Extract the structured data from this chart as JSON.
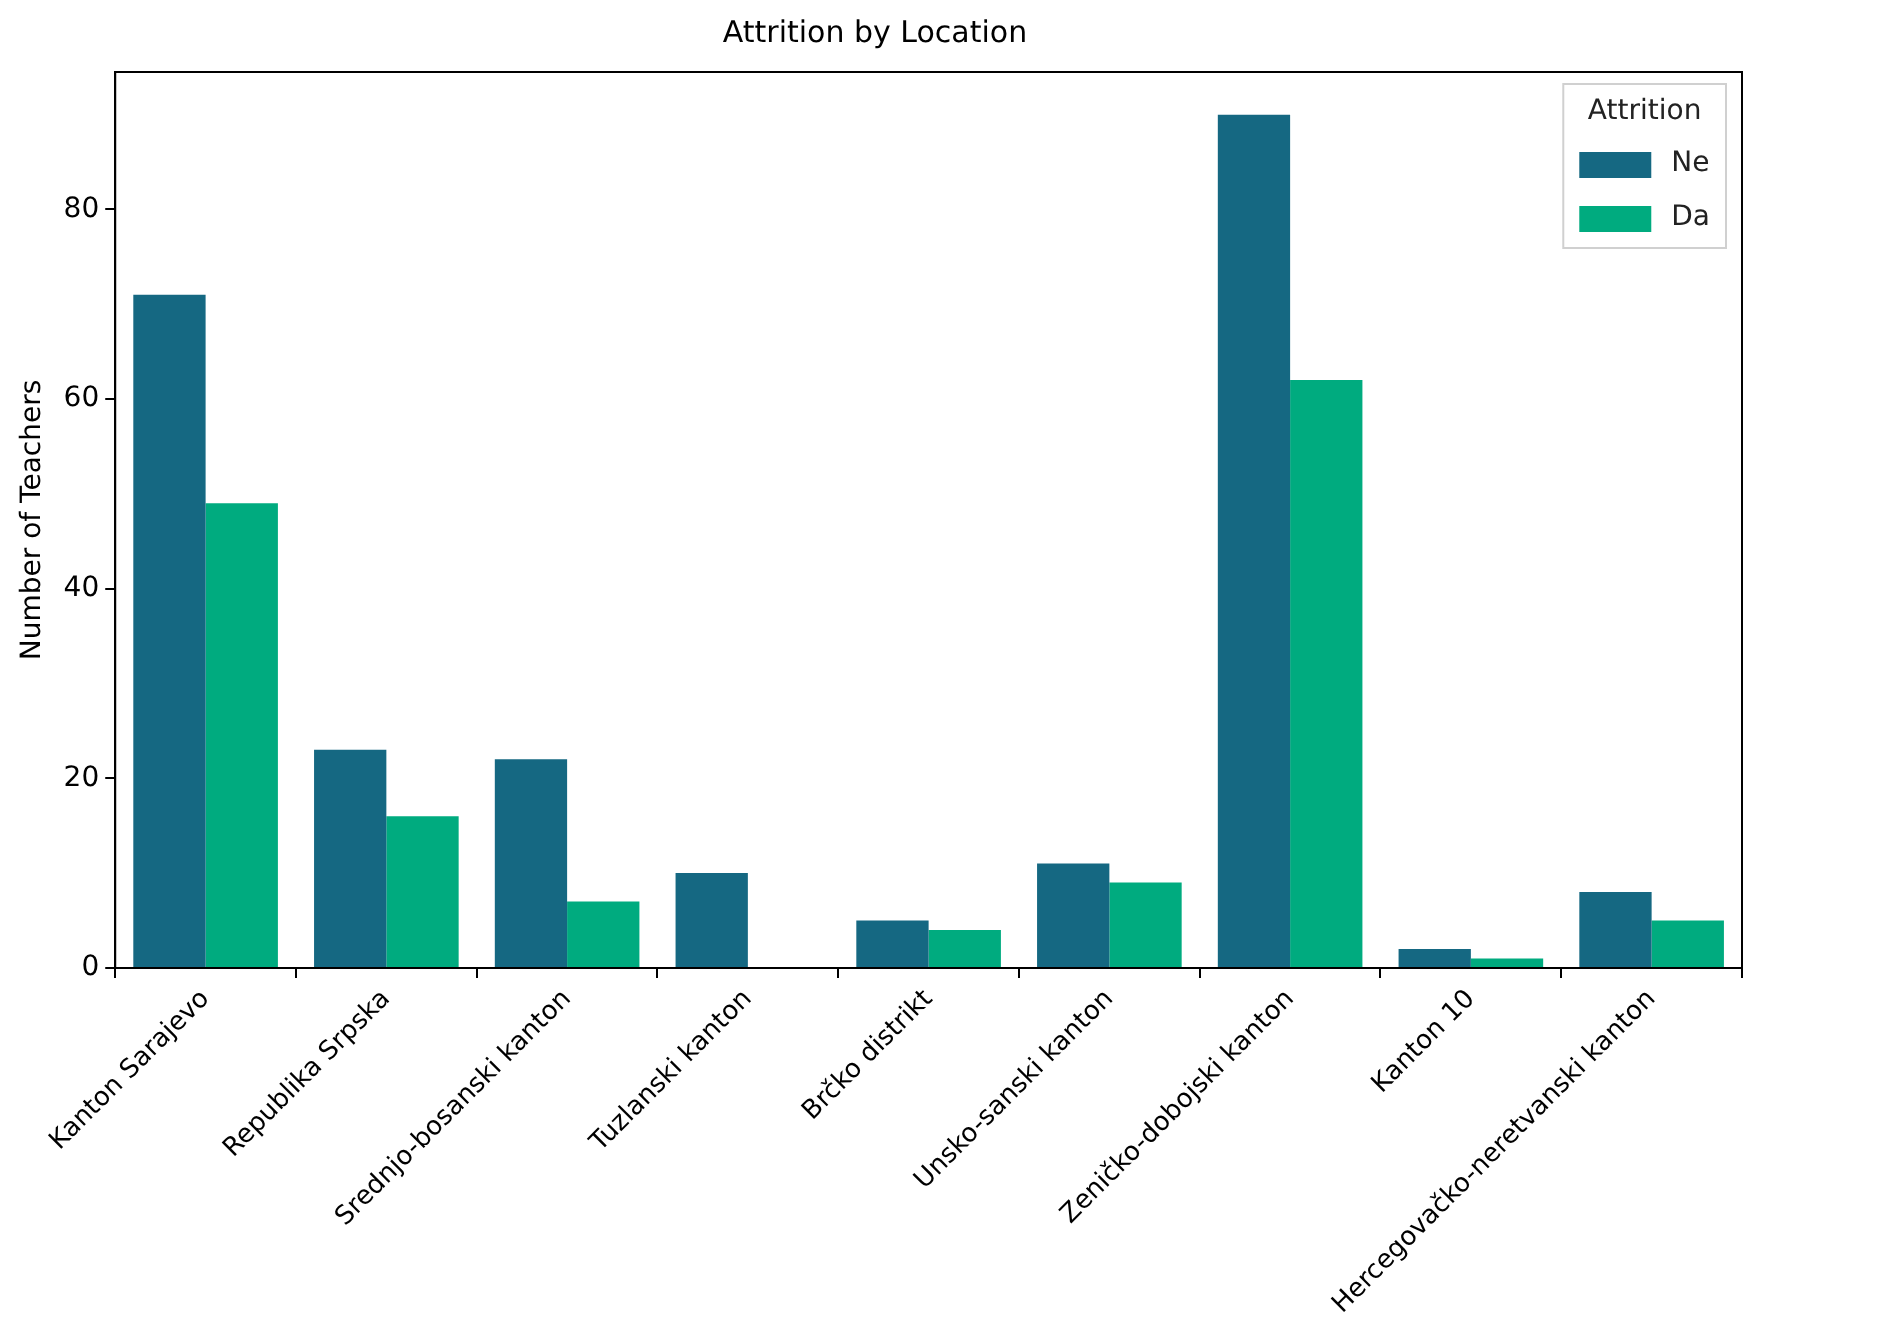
{
  "chart_data": {
    "type": "bar",
    "title": "Attrition by Location",
    "ylabel": "Number of Teachers",
    "legend_title": "Attrition",
    "categories": [
      "Kanton Sarajevo",
      "Republika Srpska",
      "Srednjo-bosanski kanton",
      "Tuzlanski kanton",
      "Brčko distrikt",
      "Unsko-sanski kanton",
      "Zeničko-dobojski kanton",
      "Kanton 10",
      "Hercegovačko-neretvanski kanton"
    ],
    "series": [
      {
        "name": "Ne",
        "color": "#156882",
        "values": [
          71,
          23,
          22,
          10,
          5,
          11,
          90,
          2,
          8
        ]
      },
      {
        "name": "Da",
        "color": "#00ab7f",
        "values": [
          49,
          16,
          7,
          0,
          4,
          9,
          62,
          1,
          5
        ]
      }
    ],
    "ylim": [
      0,
      94.5
    ],
    "yticks": [
      0,
      20,
      40,
      60,
      80
    ],
    "grid": false,
    "legend": "top right"
  }
}
